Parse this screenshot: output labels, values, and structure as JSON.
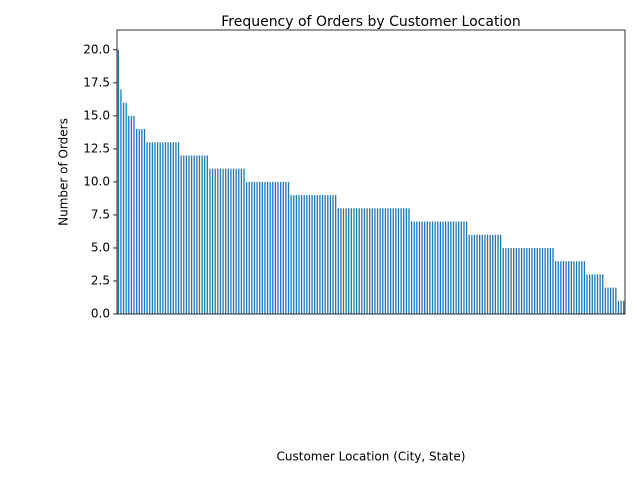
{
  "chart_data": {
    "type": "bar",
    "title": "Frequency of Orders by Customer Location",
    "xlabel": "Customer Location (City, State)",
    "ylabel": "Number of Orders",
    "color": "#1f77b4",
    "categories": [
      null,
      null,
      null,
      null,
      null,
      null,
      null,
      null,
      null,
      null,
      null,
      null,
      null,
      null,
      null,
      null,
      null,
      null,
      null,
      null,
      null,
      null,
      null,
      null,
      null,
      null,
      null,
      null,
      null,
      null,
      null,
      null,
      null,
      null,
      null,
      null,
      null,
      null,
      null,
      null,
      null,
      null,
      null,
      null,
      null,
      null,
      null,
      null,
      null,
      null,
      null,
      null,
      null,
      null,
      null,
      null,
      null,
      null,
      null,
      null,
      null,
      null,
      null,
      null,
      null,
      null,
      null,
      null,
      null,
      null,
      null,
      null,
      null,
      null,
      null,
      null,
      null,
      null,
      null,
      null,
      null,
      null,
      null,
      null,
      null,
      null,
      null,
      null,
      null,
      null,
      null,
      null,
      null,
      null,
      null,
      null,
      null,
      null,
      null,
      null,
      null,
      null,
      null,
      null,
      null,
      null,
      null,
      null,
      null,
      null,
      null,
      null,
      null,
      null,
      null,
      null,
      null,
      null,
      null,
      null,
      null,
      null,
      null,
      null,
      null,
      null,
      null,
      null,
      null,
      null,
      null,
      null,
      null,
      null,
      null,
      null,
      null,
      null,
      null,
      null,
      null,
      null,
      null,
      null,
      null,
      null,
      null,
      null,
      null,
      null,
      null,
      null,
      null,
      null,
      null,
      null,
      null,
      null,
      null,
      null,
      null,
      null,
      null,
      null,
      null,
      null,
      null,
      null,
      null,
      null,
      null,
      null,
      null,
      null,
      null,
      null,
      null,
      null,
      null,
      null,
      null,
      null,
      null,
      null,
      null,
      null,
      null,
      null,
      null,
      null,
      null,
      null,
      null,
      null
    ],
    "values": [
      20,
      17,
      16,
      16,
      15,
      15,
      15,
      14,
      14,
      14,
      14,
      13,
      13,
      13,
      13,
      13,
      13,
      13,
      13,
      13,
      13,
      13,
      13,
      13,
      12,
      12,
      12,
      12,
      12,
      12,
      12,
      12,
      12,
      12,
      12,
      11,
      11,
      11,
      11,
      11,
      11,
      11,
      11,
      11,
      11,
      11,
      11,
      11,
      11,
      10,
      10,
      10,
      10,
      10,
      10,
      10,
      10,
      10,
      10,
      10,
      10,
      10,
      10,
      10,
      10,
      10,
      9,
      9,
      9,
      9,
      9,
      9,
      9,
      9,
      9,
      9,
      9,
      9,
      9,
      9,
      9,
      9,
      9,
      9,
      8,
      8,
      8,
      8,
      8,
      8,
      8,
      8,
      8,
      8,
      8,
      8,
      8,
      8,
      8,
      8,
      8,
      8,
      8,
      8,
      8,
      8,
      8,
      8,
      8,
      8,
      8,
      8,
      7,
      7,
      7,
      7,
      7,
      7,
      7,
      7,
      7,
      7,
      7,
      7,
      7,
      7,
      7,
      7,
      7,
      7,
      7,
      7,
      7,
      7,
      6,
      6,
      6,
      6,
      6,
      6,
      6,
      6,
      6,
      6,
      6,
      6,
      6,
      5,
      5,
      5,
      5,
      5,
      5,
      5,
      5,
      5,
      5,
      5,
      5,
      5,
      5,
      5,
      5,
      5,
      5,
      5,
      5,
      4,
      4,
      4,
      4,
      4,
      4,
      4,
      4,
      4,
      4,
      4,
      4,
      3,
      3,
      3,
      3,
      3,
      3,
      3,
      2,
      2,
      2,
      2,
      2,
      1,
      1,
      1
    ],
    "ylim": [
      0,
      21.5
    ],
    "yticks": [
      {
        "value": 0,
        "label": "0.0"
      },
      2.5,
      {
        "value": 5,
        "label": "5.0"
      },
      7.5,
      {
        "value": 10,
        "label": "10.0"
      },
      12.5,
      {
        "value": 15,
        "label": "15.0"
      },
      17.5,
      {
        "value": 20,
        "label": "20.0"
      }
    ]
  }
}
